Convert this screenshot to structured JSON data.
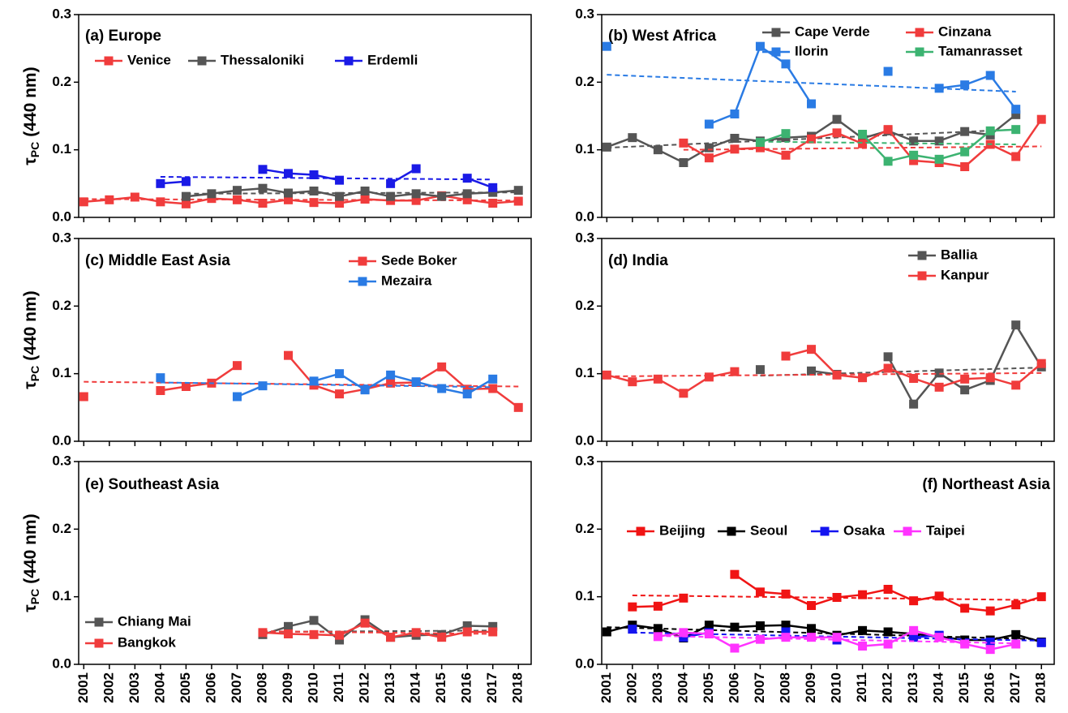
{
  "chart_data": [
    {
      "type": "line",
      "title": "(a) Europe",
      "x": [
        2001,
        2002,
        2003,
        2004,
        2005,
        2006,
        2007,
        2008,
        2009,
        2010,
        2011,
        2012,
        2013,
        2014,
        2015,
        2016,
        2017,
        2018
      ],
      "xlim": [
        2000.8,
        2018.5
      ],
      "xticks": [
        2001,
        2002,
        2003,
        2004,
        2005,
        2006,
        2007,
        2008,
        2009,
        2010,
        2011,
        2012,
        2013,
        2014,
        2015,
        2016,
        2017,
        2018
      ],
      "xtick_labels": false,
      "ylim": [
        0,
        0.3
      ],
      "yticks": [
        {
          "value": 0,
          "label": "0.0"
        },
        0.1,
        0.2,
        0.3
      ],
      "ylabel": {
        "symbol": "τ",
        "subscript": "PC",
        "unit": "(440 nm)"
      },
      "series": [
        {
          "name": "Venice",
          "color": "#f03c3c",
          "values": [
            0.023,
            0.026,
            0.03,
            0.023,
            0.02,
            0.028,
            0.026,
            0.021,
            0.026,
            0.022,
            0.021,
            0.027,
            0.025,
            0.025,
            0.032,
            0.026,
            0.021,
            0.024
          ],
          "trend": {
            "x": [
              2001,
              2018
            ],
            "y": [
              0.027,
              0.025
            ]
          }
        },
        {
          "name": "Thessaloniki",
          "color": "#555555",
          "values": [
            null,
            null,
            null,
            null,
            0.031,
            0.035,
            0.04,
            0.043,
            0.036,
            0.039,
            0.031,
            0.039,
            0.031,
            0.035,
            0.031,
            0.035,
            0.037,
            0.04
          ],
          "trend": {
            "x": [
              2005,
              2018
            ],
            "y": [
              0.035,
              0.037
            ]
          }
        },
        {
          "name": "Erdemli",
          "color": "#1a1ae6",
          "values": [
            null,
            null,
            null,
            0.05,
            0.053,
            null,
            null,
            0.071,
            0.065,
            0.063,
            0.055,
            null,
            0.05,
            0.072,
            null,
            0.058,
            0.044,
            null
          ],
          "trend": {
            "x": [
              2004,
              2017
            ],
            "y": [
              0.06,
              0.056
            ]
          }
        }
      ]
    },
    {
      "type": "line",
      "title": "(b) West Africa",
      "x": [
        2001,
        2002,
        2003,
        2004,
        2005,
        2006,
        2007,
        2008,
        2009,
        2010,
        2011,
        2012,
        2013,
        2014,
        2015,
        2016,
        2017,
        2018
      ],
      "xlim": [
        2000.8,
        2018.5
      ],
      "xticks": [
        2001,
        2002,
        2003,
        2004,
        2005,
        2006,
        2007,
        2008,
        2009,
        2010,
        2011,
        2012,
        2013,
        2014,
        2015,
        2016,
        2017,
        2018
      ],
      "xtick_labels": false,
      "ylim": [
        0,
        0.3
      ],
      "yticks": [
        {
          "value": 0,
          "label": "0.0"
        },
        0.1,
        0.2,
        0.3
      ],
      "series": [
        {
          "name": "Cape Verde",
          "color": "#555555",
          "values": [
            0.104,
            0.118,
            0.1,
            0.081,
            0.103,
            0.117,
            0.113,
            0.118,
            0.12,
            0.145,
            0.117,
            0.128,
            0.113,
            0.113,
            0.127,
            0.122,
            0.152,
            null
          ],
          "trend": {
            "x": [
              2001,
              2017
            ],
            "y": [
              0.103,
              0.13
            ]
          }
        },
        {
          "name": "Cinzana",
          "color": "#f03c3c",
          "values": [
            null,
            null,
            null,
            0.11,
            0.088,
            0.101,
            0.103,
            0.092,
            0.116,
            0.125,
            0.109,
            0.13,
            0.084,
            0.081,
            0.075,
            0.108,
            0.09,
            0.145
          ],
          "trend": {
            "x": [
              2004,
              2018
            ],
            "y": [
              0.1,
              0.105
            ]
          }
        },
        {
          "name": "Ilorin",
          "color": "#2a7be4",
          "values": [
            0.253,
            null,
            null,
            null,
            0.138,
            0.153,
            0.253,
            0.227,
            0.168,
            null,
            null,
            0.216,
            null,
            0.191,
            0.196,
            0.21,
            0.16,
            null
          ],
          "trend": {
            "x": [
              2001,
              2017
            ],
            "y": [
              0.211,
              0.186
            ]
          }
        },
        {
          "name": "Tamanrasset",
          "color": "#3cb371",
          "values": [
            null,
            null,
            null,
            null,
            null,
            null,
            0.111,
            0.124,
            null,
            null,
            0.123,
            0.083,
            0.092,
            0.086,
            0.097,
            0.128,
            0.13,
            null
          ],
          "trend": {
            "x": [
              2007,
              2017
            ],
            "y": [
              0.112,
              0.108
            ]
          }
        }
      ]
    },
    {
      "type": "line",
      "title": "(c) Middle East Asia",
      "x": [
        2001,
        2002,
        2003,
        2004,
        2005,
        2006,
        2007,
        2008,
        2009,
        2010,
        2011,
        2012,
        2013,
        2014,
        2015,
        2016,
        2017,
        2018
      ],
      "xlim": [
        2000.8,
        2018.5
      ],
      "xticks": [
        2001,
        2002,
        2003,
        2004,
        2005,
        2006,
        2007,
        2008,
        2009,
        2010,
        2011,
        2012,
        2013,
        2014,
        2015,
        2016,
        2017,
        2018
      ],
      "xtick_labels": false,
      "ylim": [
        0,
        0.3
      ],
      "yticks": [
        {
          "value": 0,
          "label": "0.0"
        },
        0.1,
        0.2,
        0.3
      ],
      "ylabel": {
        "symbol": "τ",
        "subscript": "PC",
        "unit": "(440 nm)"
      },
      "series": [
        {
          "name": "Sede Boker",
          "color": "#f03c3c",
          "values": [
            0.066,
            null,
            null,
            0.075,
            0.081,
            0.086,
            0.112,
            null,
            0.127,
            0.083,
            0.07,
            0.077,
            0.086,
            0.087,
            0.11,
            0.077,
            0.078,
            0.05
          ],
          "trend": {
            "x": [
              2001,
              2018
            ],
            "y": [
              0.088,
              0.081
            ]
          }
        },
        {
          "name": "Mezaira",
          "color": "#2a7be4",
          "values": [
            null,
            null,
            null,
            0.094,
            null,
            null,
            0.066,
            0.082,
            null,
            0.089,
            0.1,
            0.076,
            0.098,
            0.088,
            0.078,
            0.07,
            0.092,
            null
          ],
          "trend": {
            "x": [
              2004,
              2017
            ],
            "y": [
              0.087,
              0.08
            ]
          }
        }
      ]
    },
    {
      "type": "line",
      "title": "(d) India",
      "x": [
        2001,
        2002,
        2003,
        2004,
        2005,
        2006,
        2007,
        2008,
        2009,
        2010,
        2011,
        2012,
        2013,
        2014,
        2015,
        2016,
        2017,
        2018
      ],
      "xlim": [
        2000.8,
        2018.5
      ],
      "xticks": [
        2001,
        2002,
        2003,
        2004,
        2005,
        2006,
        2007,
        2008,
        2009,
        2010,
        2011,
        2012,
        2013,
        2014,
        2015,
        2016,
        2017,
        2018
      ],
      "xtick_labels": false,
      "ylim": [
        0,
        0.3
      ],
      "yticks": [
        {
          "value": 0,
          "label": "0.0"
        },
        0.1,
        0.2,
        0.3
      ],
      "series": [
        {
          "name": "Ballia",
          "color": "#555555",
          "values": [
            null,
            null,
            null,
            null,
            null,
            null,
            0.106,
            null,
            0.104,
            0.099,
            null,
            0.125,
            0.055,
            0.101,
            0.076,
            0.09,
            0.172,
            0.11
          ],
          "trend": {
            "x": [
              2007,
              2018
            ],
            "y": [
              0.097,
              0.109
            ]
          }
        },
        {
          "name": "Kanpur",
          "color": "#f03c3c",
          "values": [
            0.098,
            0.088,
            0.092,
            0.071,
            0.095,
            0.103,
            null,
            0.126,
            0.136,
            0.098,
            0.094,
            0.108,
            0.093,
            0.08,
            0.092,
            0.094,
            0.083,
            0.115
          ],
          "trend": {
            "x": [
              2001,
              2018
            ],
            "y": [
              0.096,
              0.101
            ]
          }
        }
      ]
    },
    {
      "type": "line",
      "title": "(e) Southeast Asia",
      "x": [
        2001,
        2002,
        2003,
        2004,
        2005,
        2006,
        2007,
        2008,
        2009,
        2010,
        2011,
        2012,
        2013,
        2014,
        2015,
        2016,
        2017,
        2018
      ],
      "xlim": [
        2000.8,
        2018.5
      ],
      "xticks": [
        2001,
        2002,
        2003,
        2004,
        2005,
        2006,
        2007,
        2008,
        2009,
        2010,
        2011,
        2012,
        2013,
        2014,
        2015,
        2016,
        2017,
        2018
      ],
      "xtick_labels": true,
      "ylim": [
        0,
        0.3
      ],
      "yticks": [
        {
          "value": 0,
          "label": "0.0"
        },
        0.1,
        0.2,
        0.3
      ],
      "ylabel": {
        "symbol": "τ",
        "subscript": "PC",
        "unit": "(440 nm)"
      },
      "series": [
        {
          "name": "Chiang Mai",
          "color": "#555555",
          "values": [
            null,
            null,
            null,
            null,
            null,
            null,
            null,
            0.044,
            0.056,
            0.065,
            0.036,
            0.066,
            0.04,
            0.043,
            0.044,
            0.057,
            0.056,
            null
          ],
          "trend": {
            "x": [
              2008,
              2017
            ],
            "y": [
              0.048,
              0.05
            ]
          }
        },
        {
          "name": "Bangkok",
          "color": "#f03c3c",
          "values": [
            null,
            null,
            null,
            null,
            null,
            null,
            null,
            0.047,
            0.045,
            0.044,
            0.043,
            0.061,
            0.04,
            0.047,
            0.04,
            0.048,
            0.048,
            null
          ],
          "trend": {
            "x": [
              2008,
              2017
            ],
            "y": [
              0.049,
              0.045
            ]
          }
        }
      ]
    },
    {
      "type": "line",
      "title": "(f) Northeast Asia",
      "x": [
        2001,
        2002,
        2003,
        2004,
        2005,
        2006,
        2007,
        2008,
        2009,
        2010,
        2011,
        2012,
        2013,
        2014,
        2015,
        2016,
        2017,
        2018
      ],
      "xlim": [
        2000.8,
        2018.5
      ],
      "xticks": [
        2001,
        2002,
        2003,
        2004,
        2005,
        2006,
        2007,
        2008,
        2009,
        2010,
        2011,
        2012,
        2013,
        2014,
        2015,
        2016,
        2017,
        2018
      ],
      "xtick_labels": true,
      "ylim": [
        0,
        0.3
      ],
      "yticks": [
        {
          "value": 0,
          "label": "0.0"
        },
        0.1,
        0.2,
        0.3
      ],
      "series": [
        {
          "name": "Beijing",
          "color": "#f01414",
          "values": [
            null,
            0.085,
            0.086,
            0.098,
            null,
            0.133,
            0.107,
            0.104,
            0.087,
            0.099,
            0.103,
            0.111,
            0.094,
            0.101,
            0.083,
            0.079,
            0.088,
            0.1
          ],
          "trend": {
            "x": [
              2002,
              2018
            ],
            "y": [
              0.102,
              0.095
            ]
          }
        },
        {
          "name": "Seoul",
          "color": "#000000",
          "values": [
            0.048,
            0.058,
            0.053,
            0.039,
            0.058,
            0.055,
            0.057,
            0.058,
            0.053,
            0.043,
            0.05,
            0.048,
            0.045,
            0.041,
            0.036,
            0.036,
            0.044,
            0.033
          ],
          "trend": {
            "x": [
              2001,
              2018
            ],
            "y": [
              0.055,
              0.037
            ]
          }
        },
        {
          "name": "Osaka",
          "color": "#1414f0",
          "values": [
            null,
            0.052,
            null,
            0.04,
            0.047,
            null,
            null,
            0.048,
            null,
            0.036,
            null,
            null,
            0.04,
            0.043,
            null,
            0.033,
            null,
            0.032
          ],
          "trend": {
            "x": [
              2002,
              2018
            ],
            "y": [
              0.047,
              0.035
            ]
          }
        },
        {
          "name": "Taipei",
          "color": "#ff33ff",
          "values": [
            null,
            null,
            0.041,
            0.047,
            0.045,
            0.024,
            0.037,
            0.04,
            0.04,
            0.04,
            0.027,
            0.03,
            0.05,
            0.04,
            0.03,
            0.022,
            0.03,
            null
          ],
          "trend": {
            "x": [
              2003,
              2017
            ],
            "y": [
              0.042,
              0.031
            ]
          }
        }
      ]
    }
  ]
}
